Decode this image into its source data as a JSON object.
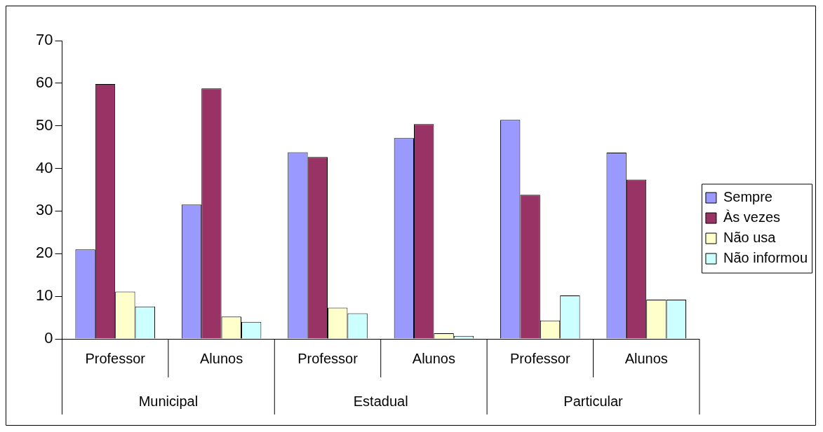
{
  "chart_data": {
    "type": "bar",
    "categories": [
      "Professor",
      "Alunos",
      "Professor",
      "Alunos",
      "Professor",
      "Alunos"
    ],
    "annotations": [
      "Municipal",
      "Estadual",
      "Particular"
    ],
    "series": [
      {
        "name": "Sempre",
        "color": "#9999ff",
        "values": [
          21,
          31.5,
          43.8,
          47.1,
          51.4,
          43.7
        ]
      },
      {
        "name": "Às vezes",
        "color": "#993366",
        "values": [
          59.8,
          58.8,
          42.7,
          50.4,
          33.8,
          37.4
        ]
      },
      {
        "name": "Não usa",
        "color": "#ffffcc",
        "values": [
          11.1,
          5.2,
          7.3,
          1.3,
          4.3,
          9.2
        ]
      },
      {
        "name": "Não informou",
        "color": "#ccffff",
        "values": [
          7.6,
          4,
          6,
          0.7,
          10.2,
          9.2
        ]
      }
    ],
    "ylim": [
      0,
      70
    ],
    "yticks": [
      0,
      10,
      20,
      30,
      40,
      50,
      60,
      70
    ],
    "grid": false,
    "legend": "right"
  }
}
